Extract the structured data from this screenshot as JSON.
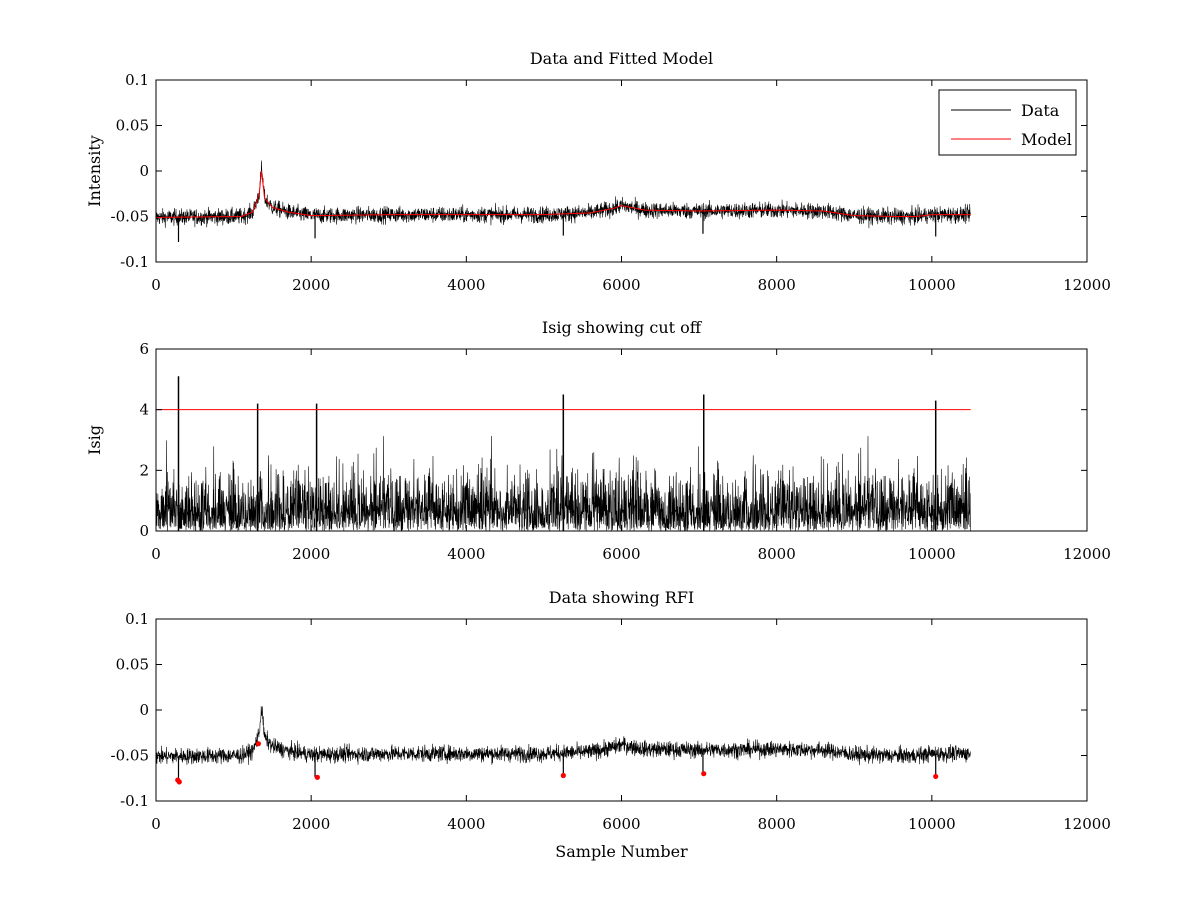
{
  "figure": {
    "background": "#ffffff",
    "data_color": "#000000",
    "model_color": "#ff0000"
  },
  "chart_data": [
    {
      "type": "line",
      "title": "Data and Fitted Model",
      "xlabel": "",
      "ylabel": "Intensity",
      "xlim": [
        0,
        12000
      ],
      "ylim": [
        -0.1,
        0.1
      ],
      "xticks": [
        0,
        2000,
        4000,
        6000,
        8000,
        10000,
        12000
      ],
      "xtick_labels": [
        "0",
        "2000",
        "4000",
        "6000",
        "8000",
        "10000",
        "12000"
      ],
      "yticks": [
        -0.1,
        -0.05,
        0,
        0.05,
        0.1
      ],
      "ytick_labels": [
        "-0.1",
        "-0.05",
        "0",
        "0.05",
        "0.1"
      ],
      "legend": {
        "position": "top-right",
        "entries": [
          "Data",
          "Model"
        ]
      },
      "series": [
        {
          "name": "Data",
          "kind": "noise",
          "color": "#000000",
          "x_end": 10500,
          "noise_amplitude": 0.008,
          "baseline": {
            "x": [
              0,
              1100,
              1250,
              1330,
              1360,
              1400,
              1500,
              1700,
              2000,
              3000,
              4000,
              5000,
              5600,
              5900,
              6000,
              6300,
              7000,
              8000,
              8600,
              9000,
              9500,
              9800,
              10000,
              10500
            ],
            "y": [
              -0.051,
              -0.05,
              -0.045,
              -0.025,
              0.003,
              -0.03,
              -0.04,
              -0.045,
              -0.049,
              -0.048,
              -0.048,
              -0.048,
              -0.046,
              -0.041,
              -0.038,
              -0.043,
              -0.044,
              -0.043,
              -0.044,
              -0.049,
              -0.05,
              -0.05,
              -0.048,
              -0.048
            ]
          },
          "spikes": [
            {
              "x": 290,
              "y": -0.078
            },
            {
              "x": 2050,
              "y": -0.074
            },
            {
              "x": 5250,
              "y": -0.071
            },
            {
              "x": 7050,
              "y": -0.069
            },
            {
              "x": 10050,
              "y": -0.072
            }
          ]
        },
        {
          "name": "Model",
          "kind": "line",
          "color": "#ff0000",
          "x": [
            0,
            1100,
            1250,
            1330,
            1360,
            1400,
            1500,
            1700,
            2000,
            3000,
            4000,
            5000,
            5600,
            5900,
            6000,
            6300,
            7000,
            8000,
            8600,
            9000,
            9500,
            9800,
            10000,
            10500
          ],
          "y": [
            -0.051,
            -0.05,
            -0.045,
            -0.025,
            0.0,
            -0.03,
            -0.04,
            -0.045,
            -0.049,
            -0.048,
            -0.048,
            -0.048,
            -0.046,
            -0.041,
            -0.038,
            -0.043,
            -0.044,
            -0.043,
            -0.044,
            -0.049,
            -0.05,
            -0.05,
            -0.048,
            -0.048
          ]
        }
      ]
    },
    {
      "type": "line",
      "title": "Isig showing cut off",
      "xlabel": "",
      "ylabel": "Isig",
      "xlim": [
        0,
        12000
      ],
      "ylim": [
        0,
        6
      ],
      "xticks": [
        0,
        2000,
        4000,
        6000,
        8000,
        10000,
        12000
      ],
      "xtick_labels": [
        "0",
        "2000",
        "4000",
        "6000",
        "8000",
        "10000",
        "12000"
      ],
      "yticks": [
        0,
        2,
        4,
        6
      ],
      "ytick_labels": [
        "0",
        "2",
        "4",
        "6"
      ],
      "series": [
        {
          "name": "Isig",
          "kind": "abs_noise",
          "color": "#000000",
          "x_end": 10500,
          "typical_max": 3.0,
          "spikes": [
            {
              "x": 290,
              "y": 5.1
            },
            {
              "x": 1310,
              "y": 4.2
            },
            {
              "x": 2070,
              "y": 4.2
            },
            {
              "x": 5250,
              "y": 4.5
            },
            {
              "x": 7060,
              "y": 4.5
            },
            {
              "x": 10050,
              "y": 4.3
            }
          ]
        },
        {
          "name": "Cut off",
          "kind": "line",
          "color": "#ff0000",
          "x": [
            0,
            10500
          ],
          "y": [
            4,
            4
          ]
        }
      ]
    },
    {
      "type": "line",
      "title": "Data showing RFI",
      "xlabel": "Sample Number",
      "ylabel": "",
      "xlim": [
        0,
        12000
      ],
      "ylim": [
        -0.1,
        0.1
      ],
      "xticks": [
        0,
        2000,
        4000,
        6000,
        8000,
        10000,
        12000
      ],
      "xtick_labels": [
        "0",
        "2000",
        "4000",
        "6000",
        "8000",
        "10000",
        "12000"
      ],
      "yticks": [
        -0.1,
        -0.05,
        0,
        0.05,
        0.1
      ],
      "ytick_labels": [
        "-0.1",
        "-0.05",
        "0",
        "0.05",
        "0.1"
      ],
      "series": [
        {
          "name": "Data",
          "kind": "noise",
          "color": "#000000",
          "x_end": 10500,
          "noise_amplitude": 0.008,
          "baseline": {
            "x": [
              0,
              1100,
              1250,
              1330,
              1360,
              1400,
              1500,
              1700,
              2000,
              3000,
              4000,
              5000,
              5600,
              5900,
              6000,
              6300,
              7000,
              8000,
              8600,
              9000,
              9500,
              9800,
              10000,
              10500
            ],
            "y": [
              -0.051,
              -0.05,
              -0.045,
              -0.025,
              0.003,
              -0.03,
              -0.04,
              -0.045,
              -0.049,
              -0.048,
              -0.048,
              -0.048,
              -0.046,
              -0.041,
              -0.038,
              -0.043,
              -0.044,
              -0.043,
              -0.044,
              -0.049,
              -0.05,
              -0.05,
              -0.048,
              -0.048
            ]
          },
          "spikes": [
            {
              "x": 290,
              "y": -0.078
            },
            {
              "x": 2050,
              "y": -0.074
            },
            {
              "x": 5250,
              "y": -0.071
            },
            {
              "x": 7050,
              "y": -0.069
            },
            {
              "x": 10050,
              "y": -0.072
            }
          ]
        },
        {
          "name": "RFI",
          "kind": "markers",
          "color": "#ff0000",
          "x": [
            280,
            300,
            1320,
            2080,
            5250,
            7060,
            10050
          ],
          "y": [
            -0.077,
            -0.079,
            -0.037,
            -0.074,
            -0.072,
            -0.07,
            -0.073
          ]
        }
      ]
    }
  ]
}
